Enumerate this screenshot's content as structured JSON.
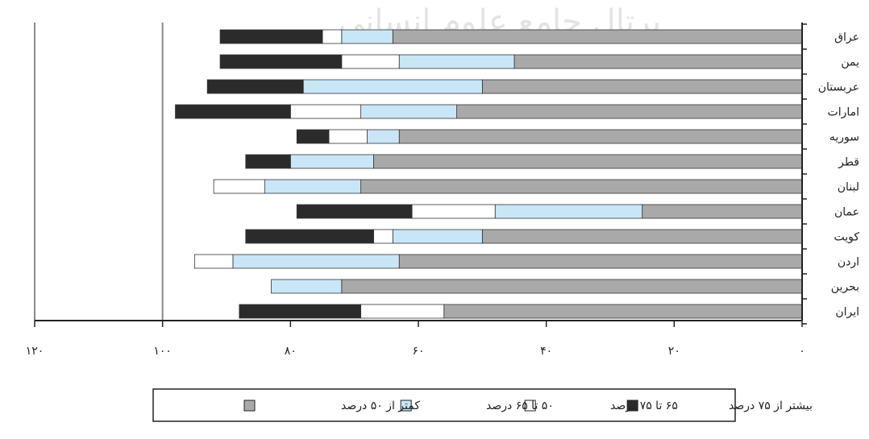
{
  "watermark": "پرتال جامع علوم انسانی",
  "chart_data": {
    "type": "bar",
    "orientation": "horizontal-stacked",
    "categories": [
      "عراق",
      "یمن",
      "عربستان",
      "امارات",
      "سوریه",
      "قطر",
      "لبنان",
      "عمان",
      "کویت",
      "اردن",
      "بحرین",
      "ایران"
    ],
    "x_direction": "right-to-left",
    "xlim": [
      0,
      120
    ],
    "xticks": [
      0,
      20,
      40,
      60,
      80,
      100,
      120
    ],
    "xtick_labels": [
      "۰",
      "۲۰",
      "۴۰",
      "۶۰",
      "۸۰",
      "۱۰۰",
      "۱۲۰"
    ],
    "grid": "vertical lines at 100 and 120",
    "legend_position": "bottom",
    "series": [
      {
        "name": "کمتر از ۵۰ درصد",
        "color": "#a9a9a9",
        "values": [
          64,
          45,
          50,
          54,
          63,
          67,
          69,
          25,
          50,
          63,
          72,
          56
        ]
      },
      {
        "name": "۵۰ تا ۶۵ درصد",
        "color": "#c9e6f7",
        "values": [
          8,
          18,
          28,
          15,
          5,
          13,
          15,
          23,
          14,
          26,
          11,
          0
        ]
      },
      {
        "name": "۶۵ تا ۷۵ درصد",
        "color": "#ffffff",
        "values": [
          3,
          9,
          0,
          11,
          6,
          0,
          8,
          13,
          3,
          6,
          0,
          13
        ]
      },
      {
        "name": "بیشتر از ۷۵ درصد",
        "color": "#2b2b2b",
        "values": [
          16,
          19,
          15,
          18,
          5,
          7,
          0,
          18,
          20,
          0,
          0,
          19
        ]
      }
    ]
  }
}
